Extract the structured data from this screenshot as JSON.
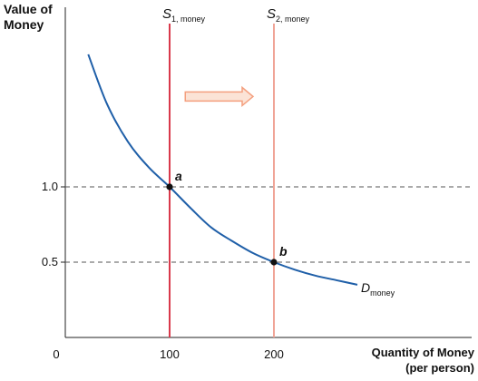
{
  "chart_data": {
    "type": "line",
    "title": "",
    "ylabel_lines": [
      "Value of",
      "Money"
    ],
    "xlabel_lines": [
      "Quantity of Money",
      "(per person)"
    ],
    "origin_label": "0",
    "xlim": [
      0,
      290
    ],
    "ylim": [
      0,
      1.8
    ],
    "x_ticks": [
      {
        "value": 100,
        "label": "100"
      },
      {
        "value": 200,
        "label": "200"
      }
    ],
    "y_ticks": [
      {
        "value": 1.0,
        "label": "1.0"
      },
      {
        "value": 0.5,
        "label": "0.5"
      }
    ],
    "demand_curve": {
      "name": "D",
      "subscript": "money",
      "color": "#1f5fa8",
      "x": [
        22,
        40,
        60,
        80,
        100,
        120,
        140,
        160,
        180,
        200,
        220,
        240,
        260,
        280
      ],
      "y": [
        1.88,
        1.55,
        1.3,
        1.13,
        1.0,
        0.86,
        0.73,
        0.64,
        0.56,
        0.5,
        0.45,
        0.41,
        0.38,
        0.35
      ]
    },
    "supply_lines": [
      {
        "name": "S",
        "subscript": "1, money",
        "x": 100,
        "color": "#d9394b"
      },
      {
        "name": "S",
        "subscript": "2, money",
        "x": 200,
        "color": "#f0a497"
      }
    ],
    "points": [
      {
        "label": "a",
        "x": 100,
        "y": 1.0
      },
      {
        "label": "b",
        "x": 200,
        "y": 0.5
      }
    ],
    "shift_arrow": {
      "from_x": 115,
      "to_x": 180,
      "y": 1.6,
      "color": "#f4a07f"
    },
    "grid": false
  }
}
